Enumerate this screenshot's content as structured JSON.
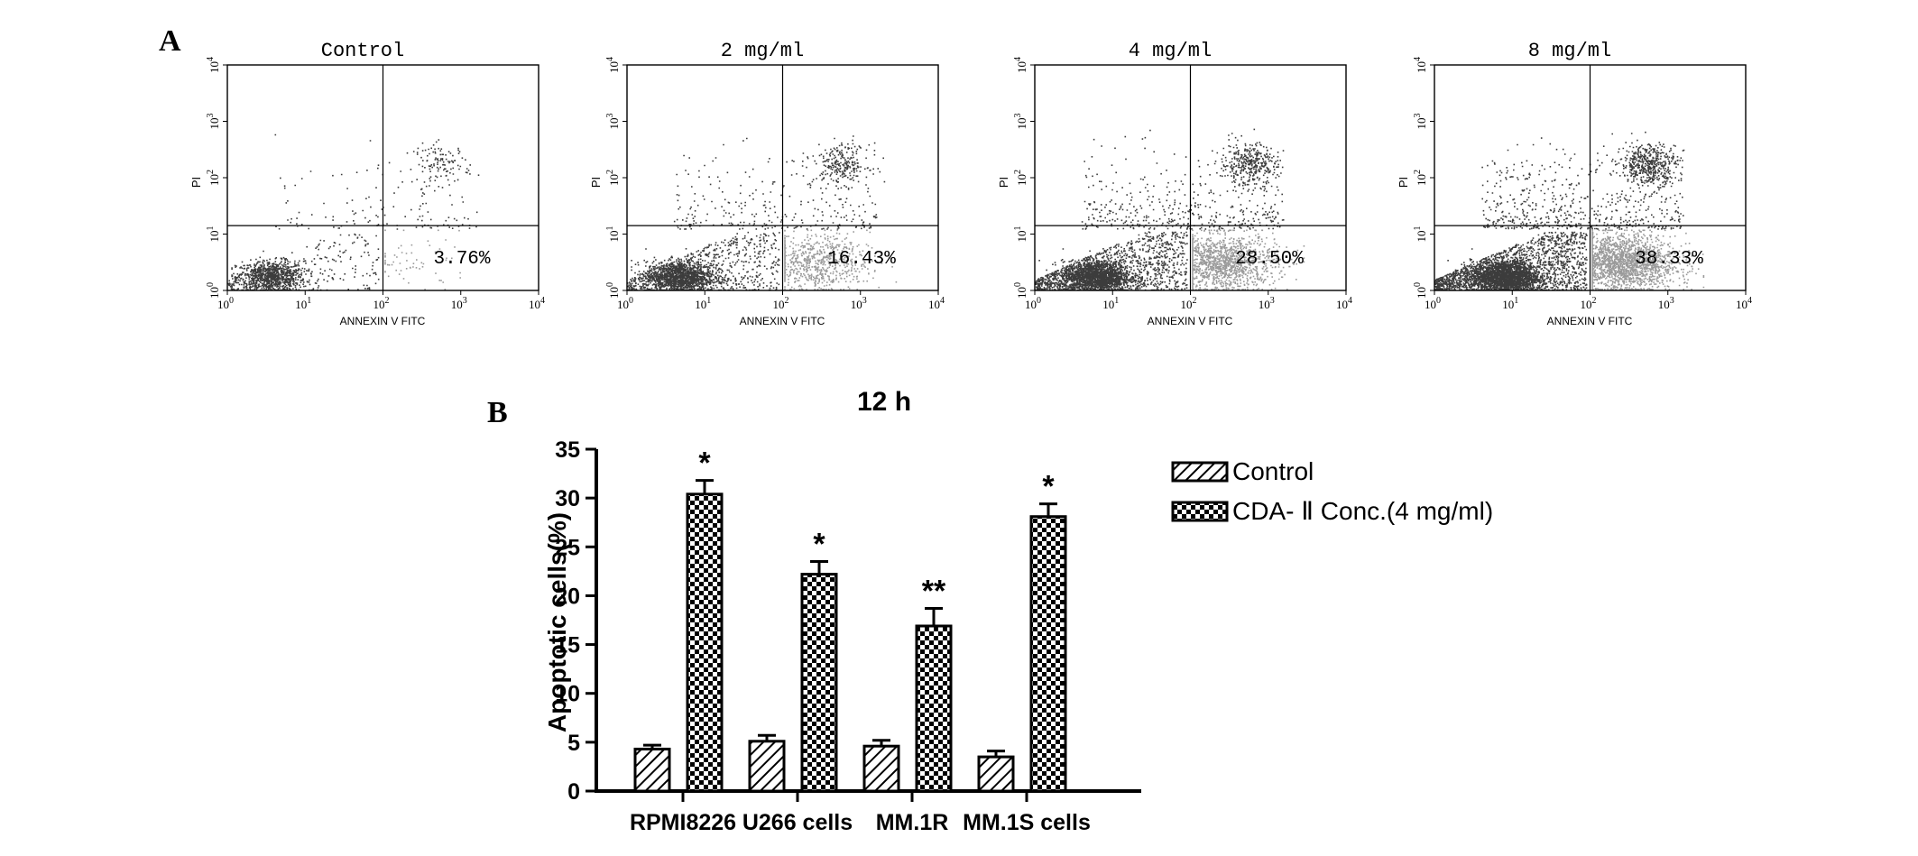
{
  "panel_a": {
    "label": "A",
    "plots": [
      {
        "title": "Control",
        "percent": "3.76%",
        "x_axis_label": "ANNEXIN V FITC",
        "y_axis_label": "PI"
      },
      {
        "title": "2 mg/ml",
        "percent": "16.43%",
        "x_axis_label": "ANNEXIN V FITC",
        "y_axis_label": "PI"
      },
      {
        "title": "4 mg/ml",
        "percent": "28.50%",
        "x_axis_label": "ANNEXIN V FITC",
        "y_axis_label": "PI"
      },
      {
        "title": "8 mg/ml",
        "percent": "38.33%",
        "x_axis_label": "ANNEXIN V FITC",
        "y_axis_label": "PI"
      }
    ],
    "tick_base": "10",
    "tick_exponents": [
      "0",
      "1",
      "2",
      "3",
      "4"
    ]
  },
  "panel_b": {
    "label": "B"
  },
  "colors": {
    "dark_dots": "#3c3c3c",
    "light_dots": "#9a9a9a",
    "axis": "#000000"
  },
  "chart_data": [
    {
      "type": "scatter",
      "description_ref": "panel_a",
      "xscale": "log",
      "yscale": "log",
      "xlim": [
        1,
        10000
      ],
      "ylim": [
        1,
        10000
      ],
      "xlabel": "ANNEXIN V FITC",
      "ylabel": "PI",
      "panels": [
        {
          "title": "Control",
          "early_apoptotic_percent": 3.76
        },
        {
          "title": "2 mg/ml",
          "early_apoptotic_percent": 16.43
        },
        {
          "title": "4 mg/ml",
          "early_apoptotic_percent": 28.5
        },
        {
          "title": "8 mg/ml",
          "early_apoptotic_percent": 38.33
        }
      ]
    },
    {
      "type": "bar",
      "title": "12 h",
      "xlabel": "",
      "ylabel": "Apoptotic cells(%)",
      "ylim": [
        0,
        35
      ],
      "yticks": [
        0,
        5,
        10,
        15,
        20,
        25,
        30,
        35
      ],
      "categories": [
        "RPMI8226",
        "U266 cells",
        "MM.1R",
        "MM.1S cells"
      ],
      "series": [
        {
          "name": "Control",
          "pattern": "diagonal-hatch",
          "values": [
            4.3,
            5.1,
            4.6,
            3.5
          ],
          "errors": [
            0.4,
            0.6,
            0.6,
            0.6
          ]
        },
        {
          "name": "CDA- Ⅱ Conc.(4 mg/ml)",
          "pattern": "checkerboard",
          "values": [
            30.4,
            22.2,
            16.9,
            28.1
          ],
          "errors": [
            1.4,
            1.3,
            1.8,
            1.3
          ]
        }
      ],
      "significance": [
        "*",
        "*",
        "**",
        "*"
      ],
      "legend_position": "right"
    }
  ]
}
